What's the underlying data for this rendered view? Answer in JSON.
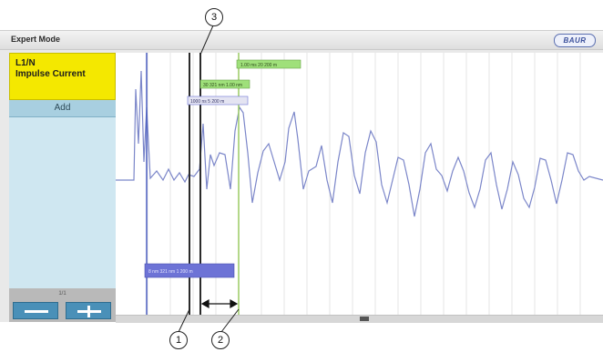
{
  "window": {
    "title": "Expert Mode",
    "logo": "BAUR"
  },
  "sidebar": {
    "measurement_line1": "L1/N",
    "measurement_line2": "Impulse Current",
    "add_label": "Add",
    "page_indicator": "1/1",
    "minus_icon": "minus-icon",
    "plus_icon": "plus-icon"
  },
  "cursor_tags": {
    "tag1": "1.00 ms  20 200 m",
    "tag2": "30 321 nm  1.00 nm",
    "tag3": "1000 ns  5 200 m",
    "tag4": "8 nm  321 nm  1 200 m"
  },
  "callouts": {
    "one": "1",
    "two": "2",
    "three": "3"
  },
  "colors": {
    "trace": "#7b86c9",
    "cursor_dark": "#2b2b2b",
    "cursor_green": "#9ccc64",
    "tag_green": "#9fe07a",
    "tag_blue": "#6d73d6",
    "sidebar_yellow": "#f4e800",
    "sidebar_blue": "#d8ecf3"
  }
}
